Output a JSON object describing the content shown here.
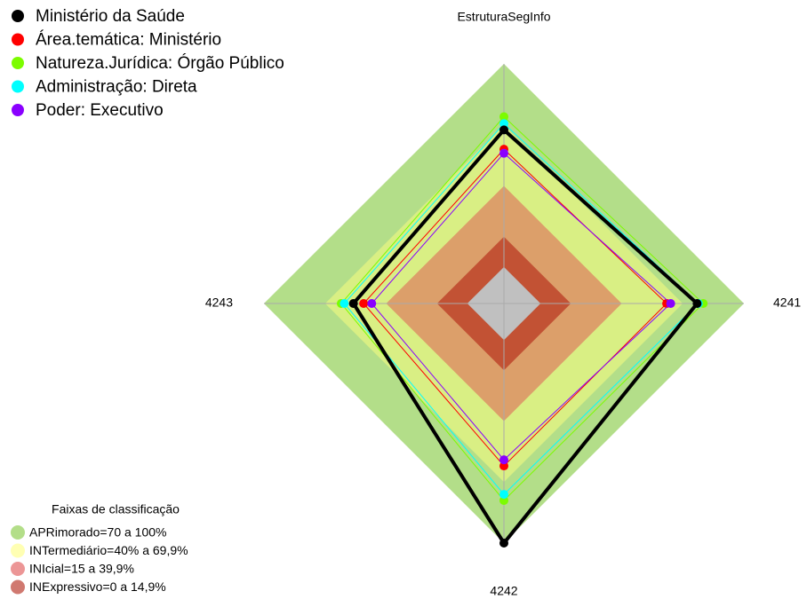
{
  "chart_data": {
    "type": "radar",
    "axes": [
      "EstruturaSegInfo",
      "4241",
      "4242",
      "4243"
    ],
    "rlim": [
      -18,
      100
    ],
    "series": [
      {
        "name": "Ministério da Saúde",
        "color": "#000000",
        "values": [
          67.5,
          77,
          100,
          56
        ]
      },
      {
        "name": "Área.temática: Ministério",
        "color": "#ff0000",
        "values": [
          58,
          62,
          62,
          51
        ]
      },
      {
        "name": "Natureza.Jurídica: Órgão Público",
        "color": "#7cfc00",
        "values": [
          74,
          80,
          79,
          62
        ]
      },
      {
        "name": "Administração: Direta",
        "color": "#00ffff",
        "values": [
          70.6,
          77.6,
          76,
          60.5
        ]
      },
      {
        "name": "Poder: Executivo",
        "color": "#8a00ff",
        "values": [
          56,
          64,
          59,
          47
        ]
      }
    ],
    "bands_title": "Faixas de classificação",
    "bands": [
      {
        "name": "APRimorado=70 a 100%",
        "color": "#b3de89",
        "range": [
          70,
          100
        ]
      },
      {
        "name": "INTermediário=40% a 69,9%",
        "color": "#ffff80",
        "range": [
          40,
          69.9
        ]
      },
      {
        "name": "INIcial=15 a 39,9%",
        "color": "#e05050",
        "range": [
          15,
          39.9
        ]
      },
      {
        "name": "INExpressivo=0 a 14,9%",
        "color": "#b02010",
        "range": [
          0,
          14.9
        ]
      }
    ],
    "center_color": "#c0c0c0"
  }
}
